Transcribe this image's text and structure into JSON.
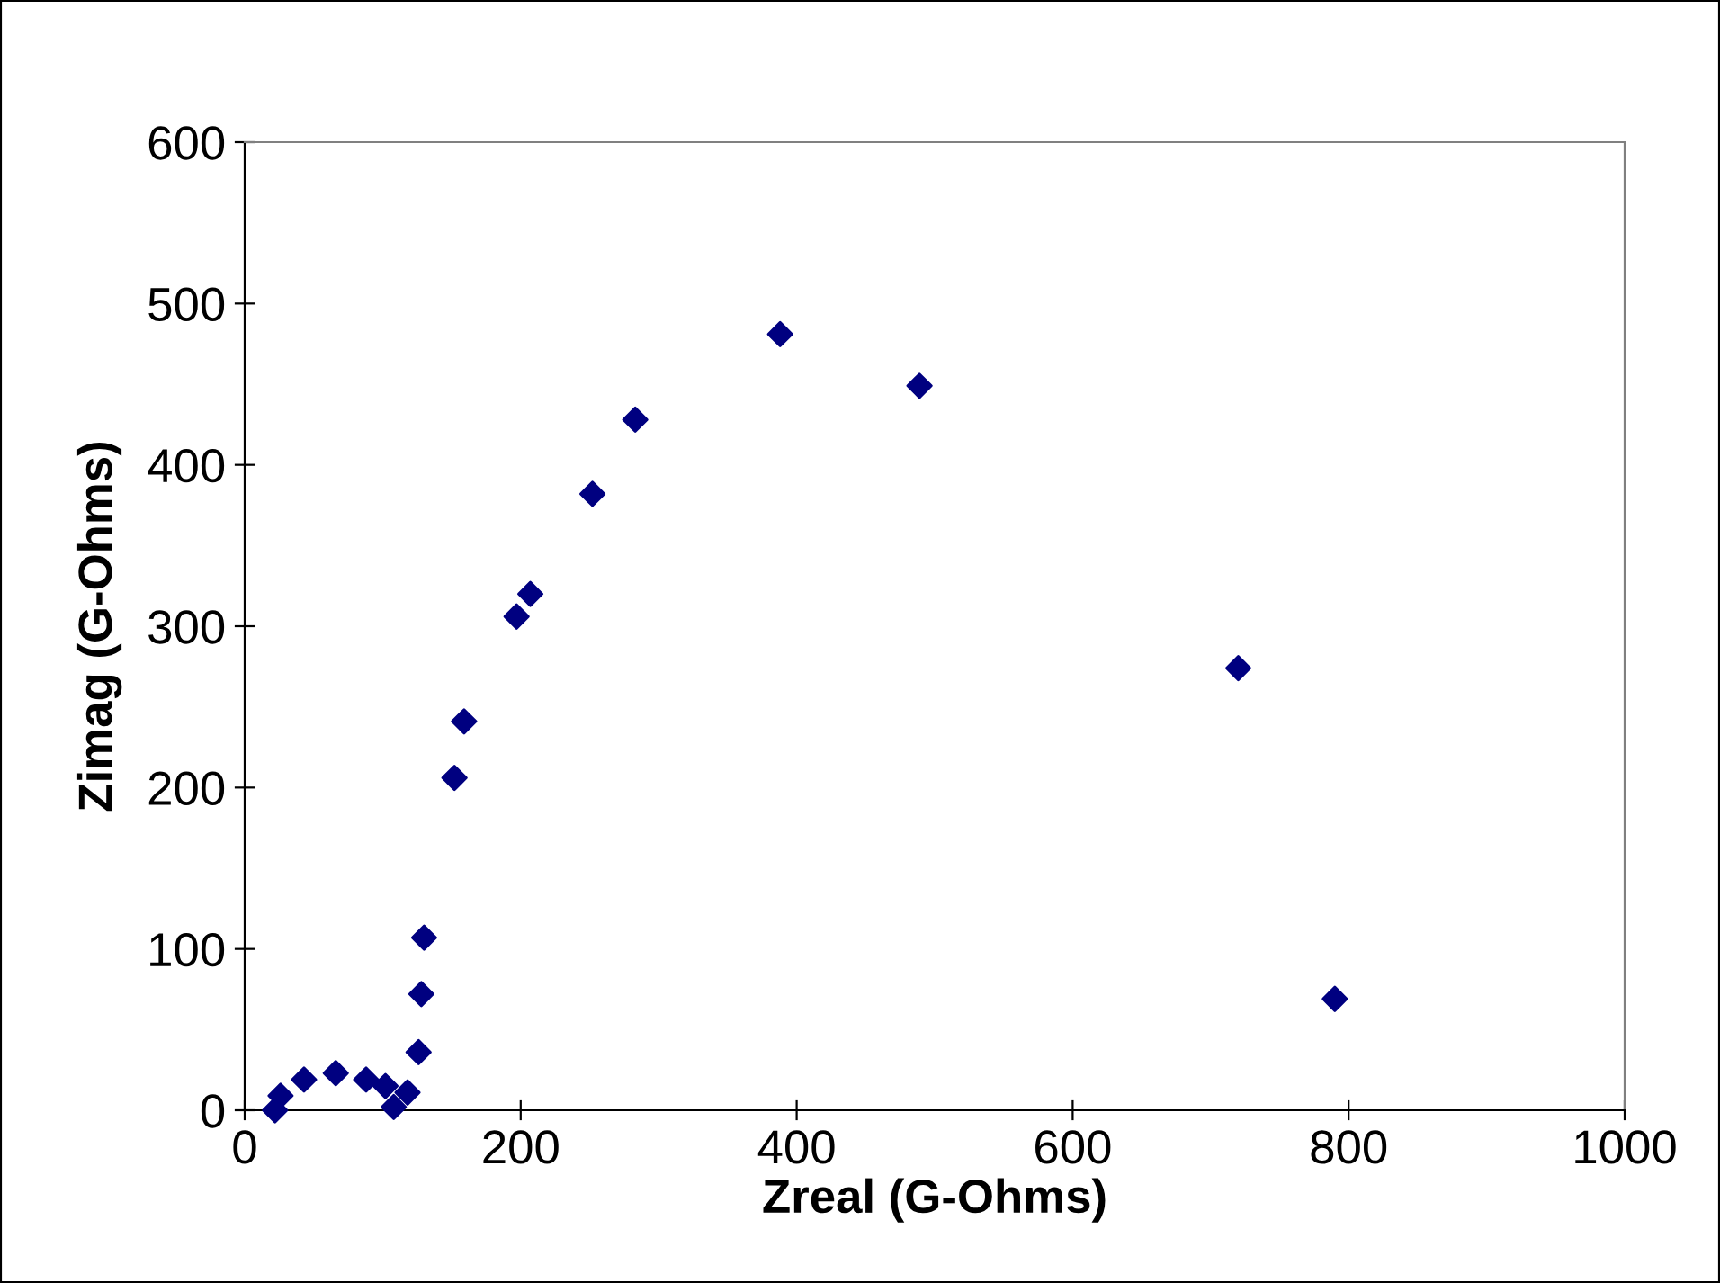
{
  "chart_data": {
    "type": "scatter",
    "xlabel": "Zreal (G-Ohms)",
    "ylabel": "Zimag (G-Ohms)",
    "x": [
      22,
      26,
      43,
      66,
      88,
      102,
      108,
      118,
      126,
      128,
      130,
      152,
      159,
      197,
      207,
      252,
      283,
      388,
      489,
      720,
      790
    ],
    "series": [
      {
        "color": "#000080",
        "values": [
          0,
          9,
          19,
          23,
          19,
          15,
          2,
          11,
          36,
          72,
          107,
          206,
          241,
          306,
          320,
          382,
          428,
          481,
          449,
          274,
          69
        ]
      }
    ],
    "marker": "diamond",
    "xlim": [
      0,
      1000
    ],
    "ylim": [
      0,
      600
    ],
    "xticks": [
      0,
      200,
      400,
      600,
      800,
      1000
    ],
    "yticks": [
      0,
      100,
      200,
      300,
      400,
      500,
      600
    ],
    "grid": false,
    "legend": false
  }
}
